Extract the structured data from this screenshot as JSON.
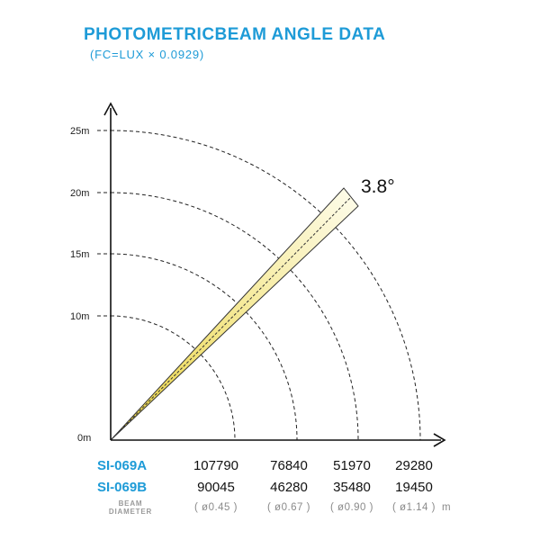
{
  "title": "PHOTOMETRICBEAM ANGLE DATA",
  "subtitle": "(FC=LUX × 0.0929)",
  "beam_angle": "3.8°",
  "y_ticks": [
    "25m",
    "20m",
    "15m",
    "10m",
    "0m"
  ],
  "table": {
    "rows": [
      {
        "model": "SI-069A",
        "values": [
          "107790",
          "76840",
          "51970",
          "29280"
        ]
      },
      {
        "model": "SI-069B",
        "values": [
          "90045",
          "46280",
          "35480",
          "19450"
        ]
      }
    ],
    "beam_diameter": {
      "label_line1": "BEAM",
      "label_line2": "DIAMETER",
      "values": [
        "( ø0.45 )",
        "( ø0.67 )",
        "( ø0.90 )",
        "( ø1.14 )"
      ],
      "unit": "m"
    }
  },
  "colors": {
    "accent": "#1e9bd7",
    "beam_fill": "#f7ec9a",
    "axis": "#111111"
  }
}
